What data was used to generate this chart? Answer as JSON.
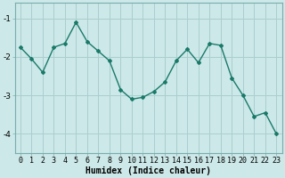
{
  "x": [
    0,
    1,
    2,
    3,
    4,
    5,
    6,
    7,
    8,
    9,
    10,
    11,
    12,
    13,
    14,
    15,
    16,
    17,
    18,
    19,
    20,
    21,
    22,
    23
  ],
  "y": [
    -1.75,
    -2.05,
    -2.4,
    -1.75,
    -1.65,
    -1.1,
    -1.6,
    -1.85,
    -2.1,
    -2.85,
    -3.1,
    -3.05,
    -2.9,
    -2.65,
    -2.1,
    -1.8,
    -2.15,
    -1.65,
    -1.7,
    -2.55,
    -3.0,
    -3.55,
    -3.45,
    -4.0
  ],
  "line_color": "#1a7a6a",
  "marker": "D",
  "marker_size": 2.0,
  "bg_color": "#cce8e8",
  "grid_color": "#aacece",
  "xlabel": "Humidex (Indice chaleur)",
  "xlabel_fontsize": 7.0,
  "tick_fontsize": 6.0,
  "ylim": [
    -4.5,
    -0.6
  ],
  "xlim": [
    -0.5,
    23.5
  ],
  "yticks": [
    -4,
    -3,
    -2,
    -1
  ],
  "xticks": [
    0,
    1,
    2,
    3,
    4,
    5,
    6,
    7,
    8,
    9,
    10,
    11,
    12,
    13,
    14,
    15,
    16,
    17,
    18,
    19,
    20,
    21,
    22,
    23
  ]
}
